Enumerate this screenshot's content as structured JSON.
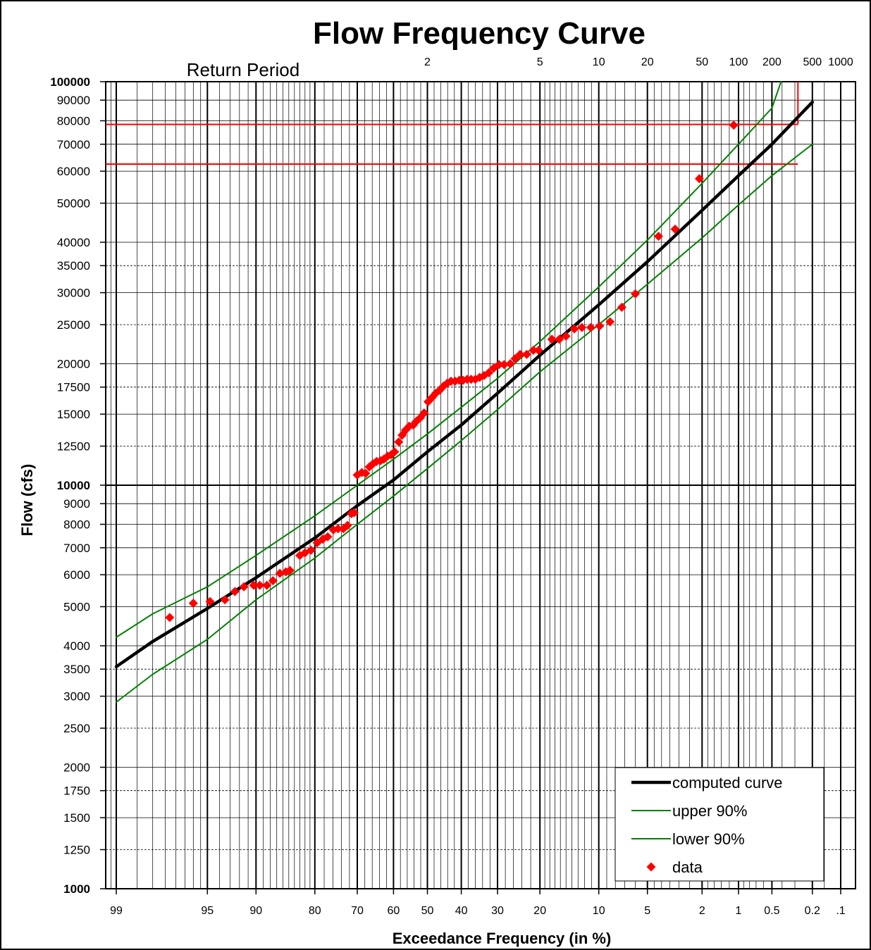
{
  "chart_data": {
    "type": "scatter",
    "title": "Flow Frequency Curve",
    "xlabel": "Exceedance Frequency (in %)",
    "ylabel": "Flow (cfs)",
    "x_scale": "normal-probability",
    "y_scale": "log",
    "ylim": [
      1000,
      100000
    ],
    "x_ticks": [
      {
        "value": 99,
        "label": "99"
      },
      {
        "value": 95,
        "label": "95"
      },
      {
        "value": 90,
        "label": "90"
      },
      {
        "value": 80,
        "label": "80"
      },
      {
        "value": 70,
        "label": "70"
      },
      {
        "value": 60,
        "label": "60"
      },
      {
        "value": 50,
        "label": "50"
      },
      {
        "value": 40,
        "label": "40"
      },
      {
        "value": 30,
        "label": "30"
      },
      {
        "value": 20,
        "label": "20"
      },
      {
        "value": 10,
        "label": "10"
      },
      {
        "value": 5,
        "label": "5"
      },
      {
        "value": 2,
        "label": "2"
      },
      {
        "value": 1,
        "label": "1"
      },
      {
        "value": 0.5,
        "label": "0.5"
      },
      {
        "value": 0.2,
        "label": "0.2"
      },
      {
        "value": 0.1,
        "label": ".1"
      }
    ],
    "y_ticks": [
      {
        "value": 100000,
        "label": "100000",
        "major": true
      },
      {
        "value": 90000,
        "label": "90000"
      },
      {
        "value": 80000,
        "label": "80000"
      },
      {
        "value": 70000,
        "label": "70000"
      },
      {
        "value": 60000,
        "label": "60000"
      },
      {
        "value": 50000,
        "label": "50000"
      },
      {
        "value": 40000,
        "label": "40000"
      },
      {
        "value": 35000,
        "label": "35000"
      },
      {
        "value": 30000,
        "label": "30000"
      },
      {
        "value": 25000,
        "label": "25000"
      },
      {
        "value": 20000,
        "label": "20000"
      },
      {
        "value": 17500,
        "label": "17500"
      },
      {
        "value": 15000,
        "label": "15000"
      },
      {
        "value": 12500,
        "label": "12500"
      },
      {
        "value": 10000,
        "label": "10000",
        "major": true
      },
      {
        "value": 9000,
        "label": "9000"
      },
      {
        "value": 8000,
        "label": "8000"
      },
      {
        "value": 7000,
        "label": "7000"
      },
      {
        "value": 6000,
        "label": "6000"
      },
      {
        "value": 5000,
        "label": "5000"
      },
      {
        "value": 4000,
        "label": "4000"
      },
      {
        "value": 3500,
        "label": "3500"
      },
      {
        "value": 3000,
        "label": "3000"
      },
      {
        "value": 2500,
        "label": "2500"
      },
      {
        "value": 2000,
        "label": "2000"
      },
      {
        "value": 1750,
        "label": "1750"
      },
      {
        "value": 1500,
        "label": "1500"
      },
      {
        "value": 1250,
        "label": "1250"
      },
      {
        "value": 1000,
        "label": "1000",
        "major": true
      }
    ],
    "return_period": {
      "label": "Return Period",
      "ticks": [
        {
          "years": 2,
          "label": "2"
        },
        {
          "years": 5,
          "label": "5"
        },
        {
          "years": 10,
          "label": "10"
        },
        {
          "years": 20,
          "label": "20"
        },
        {
          "years": 50,
          "label": "50"
        },
        {
          "years": 100,
          "label": "100"
        },
        {
          "years": 200,
          "label": "200"
        },
        {
          "years": 500,
          "label": "500"
        },
        {
          "years": 1000,
          "label": "1000"
        }
      ]
    },
    "series": [
      {
        "name": "computed curve",
        "type": "line",
        "color": "#000000",
        "points": [
          [
            99,
            3550
          ],
          [
            98,
            4100
          ],
          [
            95,
            4950
          ],
          [
            90,
            5900
          ],
          [
            80,
            7400
          ],
          [
            70,
            8900
          ],
          [
            60,
            10300
          ],
          [
            50,
            12100
          ],
          [
            40,
            14100
          ],
          [
            30,
            16900
          ],
          [
            20,
            21000
          ],
          [
            10,
            28000
          ],
          [
            5,
            35800
          ],
          [
            2,
            48000
          ],
          [
            1,
            58500
          ],
          [
            0.5,
            70000
          ],
          [
            0.2,
            89000
          ]
        ]
      },
      {
        "name": "upper 90%",
        "type": "line",
        "color": "#008000",
        "points": [
          [
            99,
            4200
          ],
          [
            98,
            4800
          ],
          [
            95,
            5600
          ],
          [
            90,
            6700
          ],
          [
            80,
            8400
          ],
          [
            70,
            10000
          ],
          [
            60,
            11600
          ],
          [
            50,
            13400
          ],
          [
            40,
            15600
          ],
          [
            30,
            18400
          ],
          [
            20,
            22700
          ],
          [
            10,
            31000
          ],
          [
            5,
            40500
          ],
          [
            2,
            56000
          ],
          [
            1,
            70000
          ],
          [
            0.5,
            86000
          ],
          [
            0.41,
            100000
          ]
        ]
      },
      {
        "name": "lower 90%",
        "type": "line",
        "color": "#008000",
        "points": [
          [
            99,
            2900
          ],
          [
            98,
            3400
          ],
          [
            95,
            4150
          ],
          [
            90,
            5200
          ],
          [
            80,
            6600
          ],
          [
            70,
            8000
          ],
          [
            60,
            9400
          ],
          [
            50,
            11000
          ],
          [
            40,
            12900
          ],
          [
            30,
            15400
          ],
          [
            20,
            19100
          ],
          [
            10,
            25000
          ],
          [
            5,
            31500
          ],
          [
            2,
            41000
          ],
          [
            1,
            49500
          ],
          [
            0.5,
            58500
          ],
          [
            0.2,
            70000
          ]
        ]
      },
      {
        "name": "data",
        "type": "scatter",
        "color": "#ff0000",
        "points": [
          [
            97.3,
            4700
          ],
          [
            96,
            5100
          ],
          [
            94.8,
            5150
          ],
          [
            93.5,
            5200
          ],
          [
            92.5,
            5450
          ],
          [
            91.5,
            5600
          ],
          [
            90.3,
            5650
          ],
          [
            89.5,
            5650
          ],
          [
            88.5,
            5650
          ],
          [
            87.6,
            5800
          ],
          [
            86.5,
            6050
          ],
          [
            85.5,
            6100
          ],
          [
            84.8,
            6150
          ],
          [
            83,
            6700
          ],
          [
            82,
            6800
          ],
          [
            80.8,
            6900
          ],
          [
            79.5,
            7200
          ],
          [
            78.3,
            7350
          ],
          [
            77.2,
            7450
          ],
          [
            75.9,
            7750
          ],
          [
            74.8,
            7800
          ],
          [
            73.5,
            7800
          ],
          [
            72.5,
            7950
          ],
          [
            71.5,
            8500
          ],
          [
            70.8,
            8550
          ],
          [
            70,
            10600
          ],
          [
            68.8,
            10750
          ],
          [
            67.8,
            10700
          ],
          [
            66.8,
            11100
          ],
          [
            65.8,
            11300
          ],
          [
            64.8,
            11450
          ],
          [
            63.7,
            11500
          ],
          [
            62.8,
            11600
          ],
          [
            61.7,
            11800
          ],
          [
            60.7,
            11900
          ],
          [
            59.7,
            12100
          ],
          [
            58.5,
            12800
          ],
          [
            57.5,
            13300
          ],
          [
            56.5,
            13700
          ],
          [
            55.4,
            14000
          ],
          [
            54.2,
            14100
          ],
          [
            53.3,
            14400
          ],
          [
            52.1,
            14700
          ],
          [
            51,
            15100
          ],
          [
            49.8,
            16100
          ],
          [
            48.6,
            16500
          ],
          [
            47.5,
            16900
          ],
          [
            46.3,
            17200
          ],
          [
            45.2,
            17600
          ],
          [
            44.1,
            17900
          ],
          [
            43,
            18100
          ],
          [
            41.8,
            18100
          ],
          [
            40.6,
            18200
          ],
          [
            39.5,
            18200
          ],
          [
            38.3,
            18300
          ],
          [
            37.2,
            18300
          ],
          [
            36,
            18300
          ],
          [
            34.8,
            18500
          ],
          [
            33.6,
            18700
          ],
          [
            32.3,
            19000
          ],
          [
            31,
            19500
          ],
          [
            29.6,
            19900
          ],
          [
            28.3,
            19900
          ],
          [
            26.8,
            20000
          ],
          [
            25.6,
            20600
          ],
          [
            24.4,
            21100
          ],
          [
            22.9,
            21100
          ],
          [
            21.4,
            21600
          ],
          [
            20.3,
            21600
          ],
          [
            17.6,
            23000
          ],
          [
            16.2,
            23000
          ],
          [
            15,
            23400
          ],
          [
            13.6,
            24400
          ],
          [
            12.4,
            24600
          ],
          [
            11.1,
            24600
          ],
          [
            9.9,
            24800
          ],
          [
            8.6,
            25400
          ],
          [
            7.3,
            27600
          ],
          [
            6,
            29800
          ],
          [
            4.2,
            41400
          ],
          [
            3.2,
            43100
          ],
          [
            2.1,
            57500
          ],
          [
            1.1,
            78000
          ]
        ]
      }
    ],
    "reference_lines": [
      {
        "type": "horizontal",
        "y": 78400,
        "x_from": 99,
        "x_to": 0.28,
        "color": "#ff0000"
      },
      {
        "type": "horizontal",
        "y": 62500,
        "x_from": 99,
        "x_to": 0.28,
        "color": "#ff0000"
      },
      {
        "type": "vertical",
        "x": 0.28,
        "y_from": 78400,
        "y_to": 100000,
        "color": "#ff0000"
      }
    ],
    "legend": {
      "position": "bottom-right",
      "entries": [
        {
          "label": "computed curve",
          "style": "thick-line",
          "color": "#000000"
        },
        {
          "label": "upper 90%",
          "style": "thin-line",
          "color": "#008000"
        },
        {
          "label": "lower 90%",
          "style": "thin-line",
          "color": "#008000"
        },
        {
          "label": "data",
          "style": "diamond",
          "color": "#ff0000"
        }
      ]
    },
    "grid": true
  }
}
